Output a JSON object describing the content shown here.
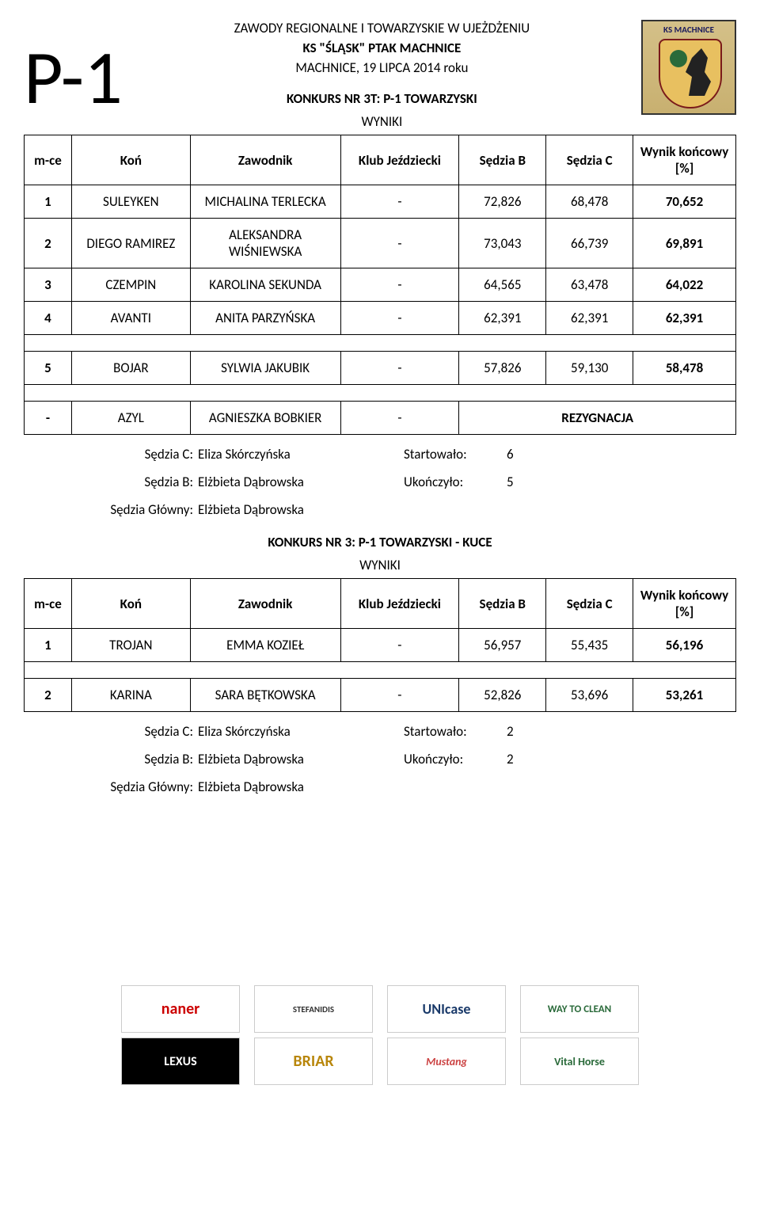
{
  "header": {
    "big_label": "P-1",
    "line1": "ZAWODY REGIONALNE I TOWARZYSKIE W UJEŻDŻENIU",
    "line2": "KS \"ŚLĄSK\" PTAK MACHNICE",
    "line3": "MACHNICE, 19 LIPCA 2014 roku",
    "comp1_title": "KONKURS NR 3T: P-1 TOWARZYSKI",
    "wyniki": "WYNIKI",
    "logo_text": "KS MACHNICE"
  },
  "table1": {
    "columns": [
      "m-ce",
      "Koń",
      "Zawodnik",
      "Klub Jeździecki",
      "Sędzia B",
      "Sędzia C",
      "Wynik końcowy [%]"
    ],
    "rows": [
      {
        "place": "1",
        "horse": "SULEYKEN",
        "rider": "MICHALINA TERLECKA",
        "club": "-",
        "sb": "72,826",
        "sc": "68,478",
        "final": "70,652"
      },
      {
        "place": "2",
        "horse": "DIEGO RAMIREZ",
        "rider": "ALEKSANDRA WIŚNIEWSKA",
        "club": "-",
        "sb": "73,043",
        "sc": "66,739",
        "final": "69,891"
      },
      {
        "place": "3",
        "horse": "CZEMPIN",
        "rider": "KAROLINA SEKUNDA",
        "club": "-",
        "sb": "64,565",
        "sc": "63,478",
        "final": "64,022"
      },
      {
        "place": "4",
        "horse": "AVANTI",
        "rider": "ANITA PARZYŃSKA",
        "club": "-",
        "sb": "62,391",
        "sc": "62,391",
        "final": "62,391"
      }
    ],
    "rows_after_gap": [
      {
        "place": "5",
        "horse": "BOJAR",
        "rider": "SYLWIA JAKUBIK",
        "club": "-",
        "sb": "57,826",
        "sc": "59,130",
        "final": "58,478"
      }
    ],
    "rows_after_gap2": [
      {
        "place": "-",
        "horse": "AZYL",
        "rider": "AGNIESZKA BOBKIER",
        "club": "-",
        "sb": "",
        "sc": "",
        "final": "REZYGNACJA",
        "colspan": true
      }
    ]
  },
  "judges1": {
    "sc_label": "Sędzia C:",
    "sc_name": "Eliza Skórczyńska",
    "start_label": "Startowało:",
    "start_val": "6",
    "sb_label": "Sędzia B:",
    "sb_name": "Elżbieta Dąbrowska",
    "end_label": "Ukończyło:",
    "end_val": "5",
    "sg_label": "Sędzia Główny:",
    "sg_name": "Elżbieta Dąbrowska"
  },
  "comp2": {
    "title": "KONKURS NR 3: P-1 TOWARZYSKI - KUCE",
    "wyniki": "WYNIKI"
  },
  "table2": {
    "columns": [
      "m-ce",
      "Koń",
      "Zawodnik",
      "Klub Jeździecki",
      "Sędzia B",
      "Sędzia C",
      "Wynik końcowy [%]"
    ],
    "rows": [
      {
        "place": "1",
        "horse": "TROJAN",
        "rider": "EMMA KOZIEŁ",
        "club": "-",
        "sb": "56,957",
        "sc": "55,435",
        "final": "56,196"
      }
    ],
    "rows_after_gap": [
      {
        "place": "2",
        "horse": "KARINA",
        "rider": "SARA BĘTKOWSKA",
        "club": "-",
        "sb": "52,826",
        "sc": "53,696",
        "final": "53,261"
      }
    ]
  },
  "judges2": {
    "sc_label": "Sędzia C:",
    "sc_name": "Eliza Skórczyńska",
    "start_label": "Startowało:",
    "start_val": "2",
    "sb_label": "Sędzia B:",
    "sb_name": "Elżbieta Dąbrowska",
    "end_label": "Ukończyło:",
    "end_val": "2",
    "sg_label": "Sędzia Główny:",
    "sg_name": "Elżbieta Dąbrowska"
  },
  "sponsors": {
    "row1": [
      "naner",
      "STEFANIDIS",
      "UNIcase",
      "WAY TO CLEAN"
    ],
    "row2": [
      "LEXUS",
      "BRIAR",
      "Mustang",
      "Vital Horse"
    ]
  },
  "colwidths": [
    "60px",
    "150px",
    "190px",
    "150px",
    "110px",
    "110px",
    "130px"
  ]
}
